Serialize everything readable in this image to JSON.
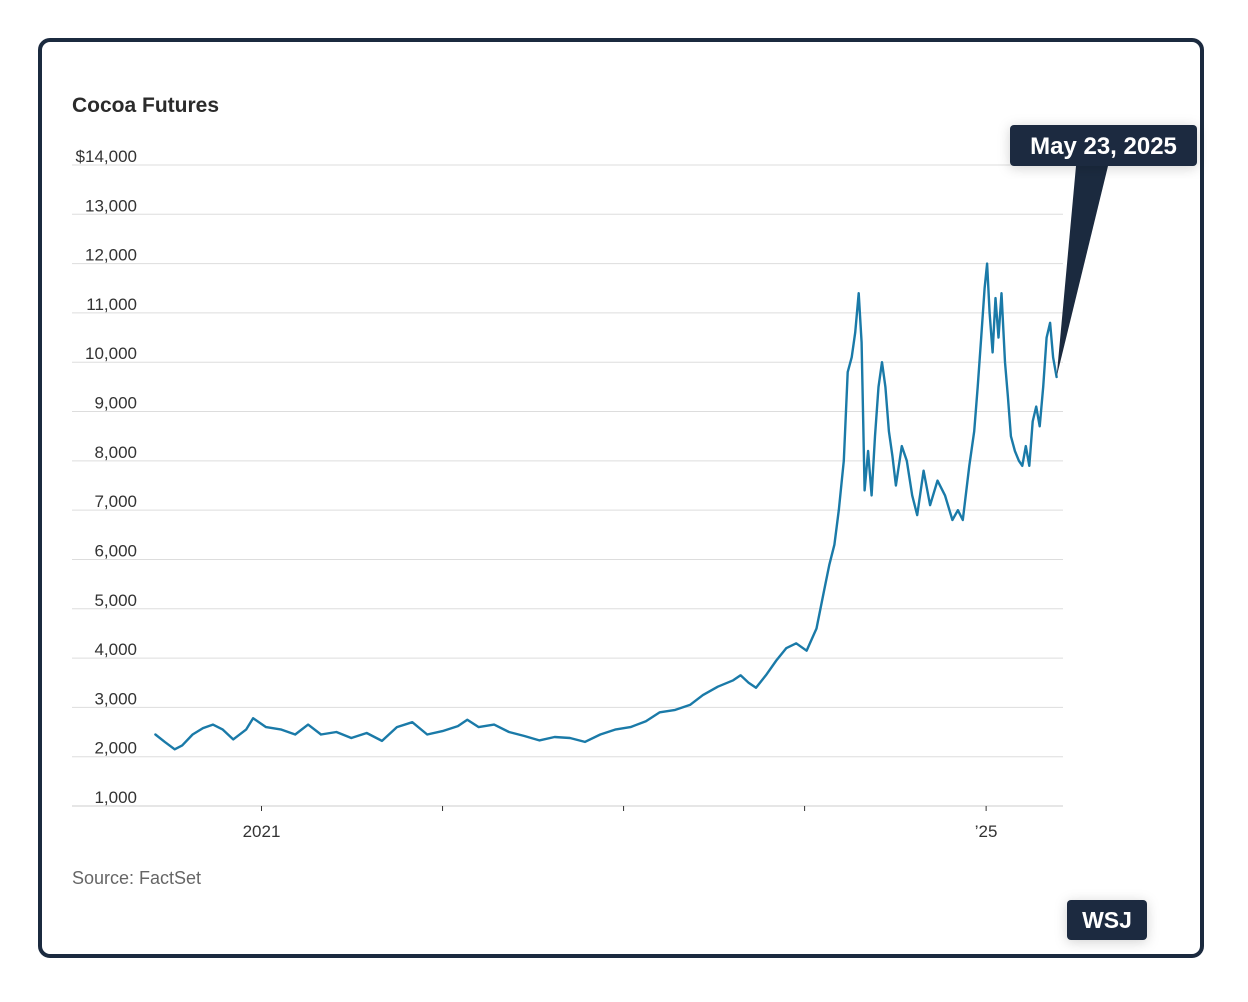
{
  "chart_data": {
    "type": "line",
    "title": "Cocoa Futures",
    "xlabel": "",
    "ylabel": "",
    "ylim": [
      1000,
      14000
    ],
    "yticks": [
      {
        "value": 14000,
        "label": "$14,000"
      },
      {
        "value": 13000,
        "label": "13,000"
      },
      {
        "value": 12000,
        "label": "12,000"
      },
      {
        "value": 11000,
        "label": "11,000"
      },
      {
        "value": 10000,
        "label": "10,000"
      },
      {
        "value": 9000,
        "label": "9,000"
      },
      {
        "value": 8000,
        "label": "8,000"
      },
      {
        "value": 7000,
        "label": "7,000"
      },
      {
        "value": 6000,
        "label": "6,000"
      },
      {
        "value": 5000,
        "label": "5,000"
      },
      {
        "value": 4000,
        "label": "4,000"
      },
      {
        "value": 3000,
        "label": "3,000"
      },
      {
        "value": 2000,
        "label": "2,000"
      },
      {
        "value": 1000,
        "label": "1,000"
      }
    ],
    "xlim": [
      "2020-05-01",
      "2025-06-05"
    ],
    "xticks": [
      {
        "date": "2021-01-01",
        "label": "2021"
      },
      {
        "date": "2022-01-01",
        "label": ""
      },
      {
        "date": "2023-01-01",
        "label": ""
      },
      {
        "date": "2024-01-01",
        "label": ""
      },
      {
        "date": "2025-01-01",
        "label": "’25"
      }
    ],
    "grid": true,
    "series": [
      {
        "color": "#1a7aa8",
        "points": [
          [
            "2020-06-01",
            2450
          ],
          [
            "2020-06-20",
            2300
          ],
          [
            "2020-07-10",
            2150
          ],
          [
            "2020-07-25",
            2230
          ],
          [
            "2020-08-15",
            2450
          ],
          [
            "2020-09-05",
            2580
          ],
          [
            "2020-09-25",
            2650
          ],
          [
            "2020-10-15",
            2550
          ],
          [
            "2020-11-05",
            2350
          ],
          [
            "2020-12-01",
            2550
          ],
          [
            "2020-12-15",
            2780
          ],
          [
            "2021-01-10",
            2600
          ],
          [
            "2021-02-10",
            2550
          ],
          [
            "2021-03-10",
            2450
          ],
          [
            "2021-04-05",
            2650
          ],
          [
            "2021-05-01",
            2450
          ],
          [
            "2021-06-01",
            2500
          ],
          [
            "2021-07-01",
            2380
          ],
          [
            "2021-08-01",
            2480
          ],
          [
            "2021-09-01",
            2320
          ],
          [
            "2021-10-01",
            2600
          ],
          [
            "2021-11-01",
            2700
          ],
          [
            "2021-12-01",
            2450
          ],
          [
            "2022-01-01",
            2520
          ],
          [
            "2022-02-01",
            2620
          ],
          [
            "2022-02-20",
            2750
          ],
          [
            "2022-03-15",
            2600
          ],
          [
            "2022-04-15",
            2650
          ],
          [
            "2022-05-15",
            2500
          ],
          [
            "2022-06-15",
            2420
          ],
          [
            "2022-07-15",
            2330
          ],
          [
            "2022-08-15",
            2400
          ],
          [
            "2022-09-15",
            2380
          ],
          [
            "2022-10-15",
            2300
          ],
          [
            "2022-11-15",
            2450
          ],
          [
            "2022-12-15",
            2550
          ],
          [
            "2023-01-15",
            2600
          ],
          [
            "2023-02-15",
            2720
          ],
          [
            "2023-03-15",
            2900
          ],
          [
            "2023-04-15",
            2950
          ],
          [
            "2023-05-15",
            3050
          ],
          [
            "2023-06-10",
            3250
          ],
          [
            "2023-07-10",
            3420
          ],
          [
            "2023-08-10",
            3550
          ],
          [
            "2023-08-25",
            3650
          ],
          [
            "2023-09-10",
            3500
          ],
          [
            "2023-09-25",
            3400
          ],
          [
            "2023-10-15",
            3650
          ],
          [
            "2023-11-05",
            3950
          ],
          [
            "2023-11-25",
            4200
          ],
          [
            "2023-12-15",
            4300
          ],
          [
            "2024-01-05",
            4150
          ],
          [
            "2024-01-25",
            4600
          ],
          [
            "2024-02-10",
            5400
          ],
          [
            "2024-02-20",
            5900
          ],
          [
            "2024-03-01",
            6300
          ],
          [
            "2024-03-10",
            7000
          ],
          [
            "2024-03-20",
            8000
          ],
          [
            "2024-03-28",
            9800
          ],
          [
            "2024-04-05",
            10100
          ],
          [
            "2024-04-12",
            10600
          ],
          [
            "2024-04-19",
            11400
          ],
          [
            "2024-04-25",
            10400
          ],
          [
            "2024-05-01",
            7400
          ],
          [
            "2024-05-08",
            8200
          ],
          [
            "2024-05-15",
            7300
          ],
          [
            "2024-05-22",
            8500
          ],
          [
            "2024-05-29",
            9500
          ],
          [
            "2024-06-05",
            10000
          ],
          [
            "2024-06-12",
            9500
          ],
          [
            "2024-06-19",
            8600
          ],
          [
            "2024-06-26",
            8100
          ],
          [
            "2024-07-03",
            7500
          ],
          [
            "2024-07-15",
            8300
          ],
          [
            "2024-07-25",
            8000
          ],
          [
            "2024-08-05",
            7300
          ],
          [
            "2024-08-15",
            6900
          ],
          [
            "2024-08-28",
            7800
          ],
          [
            "2024-09-10",
            7100
          ],
          [
            "2024-09-25",
            7600
          ],
          [
            "2024-10-10",
            7300
          ],
          [
            "2024-10-25",
            6800
          ],
          [
            "2024-11-05",
            7000
          ],
          [
            "2024-11-15",
            6800
          ],
          [
            "2024-11-28",
            7900
          ],
          [
            "2024-12-08",
            8600
          ],
          [
            "2024-12-15",
            9500
          ],
          [
            "2024-12-22",
            10500
          ],
          [
            "2024-12-29",
            11500
          ],
          [
            "2025-01-03",
            12000
          ],
          [
            "2025-01-08",
            11000
          ],
          [
            "2025-01-14",
            10200
          ],
          [
            "2025-01-20",
            11300
          ],
          [
            "2025-01-26",
            10500
          ],
          [
            "2025-02-01",
            11400
          ],
          [
            "2025-02-08",
            10000
          ],
          [
            "2025-02-14",
            9300
          ],
          [
            "2025-02-20",
            8500
          ],
          [
            "2025-02-28",
            8200
          ],
          [
            "2025-03-08",
            8000
          ],
          [
            "2025-03-15",
            7900
          ],
          [
            "2025-03-22",
            8300
          ],
          [
            "2025-03-29",
            7900
          ],
          [
            "2025-04-05",
            8800
          ],
          [
            "2025-04-12",
            9100
          ],
          [
            "2025-04-19",
            8700
          ],
          [
            "2025-04-26",
            9500
          ],
          [
            "2025-05-03",
            10500
          ],
          [
            "2025-05-10",
            10800
          ],
          [
            "2025-05-16",
            10100
          ],
          [
            "2025-05-23",
            9700
          ]
        ]
      }
    ],
    "annotations": [
      {
        "label": "May 23, 2025",
        "date": "2025-05-23",
        "value": 9700
      }
    ],
    "source": "Source: FactSet"
  },
  "logo": "WSJ",
  "colors": {
    "line": "#1a7aa8",
    "frame": "#1b2a3f",
    "grid": "#dddddd",
    "callout_bg": "#1b2a3f"
  }
}
